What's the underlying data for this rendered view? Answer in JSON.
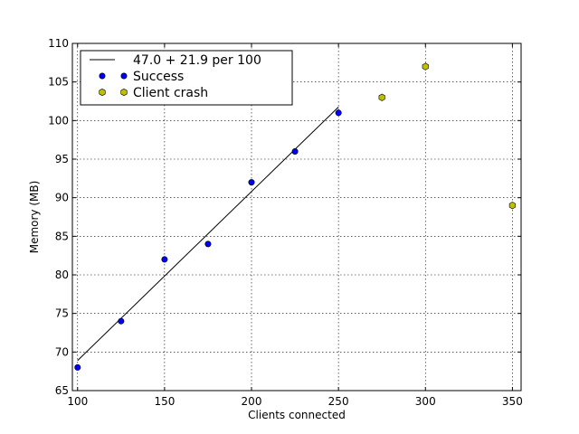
{
  "chart_data": {
    "type": "scatter",
    "title": "",
    "xlabel": "Clients connected",
    "ylabel": "Memory (MB)",
    "xlim": [
      97,
      355
    ],
    "ylim": [
      65,
      110
    ],
    "xticks": [
      100,
      150,
      200,
      250,
      300,
      350
    ],
    "yticks": [
      65,
      70,
      75,
      80,
      85,
      90,
      95,
      100,
      105,
      110
    ],
    "grid": true,
    "legend_position": "top-left",
    "series": [
      {
        "name": "47.0 + 21.9 per 100",
        "kind": "line",
        "color": "#000000",
        "x": [
          100,
          250
        ],
        "y": [
          68.9,
          101.75
        ]
      },
      {
        "name": "Success",
        "kind": "scatter",
        "marker": "circle",
        "color": "#0000ff",
        "x": [
          100,
          125,
          150,
          175,
          200,
          225,
          250
        ],
        "y": [
          68,
          74,
          82,
          84,
          92,
          96,
          101
        ]
      },
      {
        "name": "Client crash",
        "kind": "scatter",
        "marker": "hexagon",
        "color": "#bfbf00",
        "x": [
          275,
          300,
          350
        ],
        "y": [
          103,
          107,
          89
        ]
      }
    ]
  }
}
